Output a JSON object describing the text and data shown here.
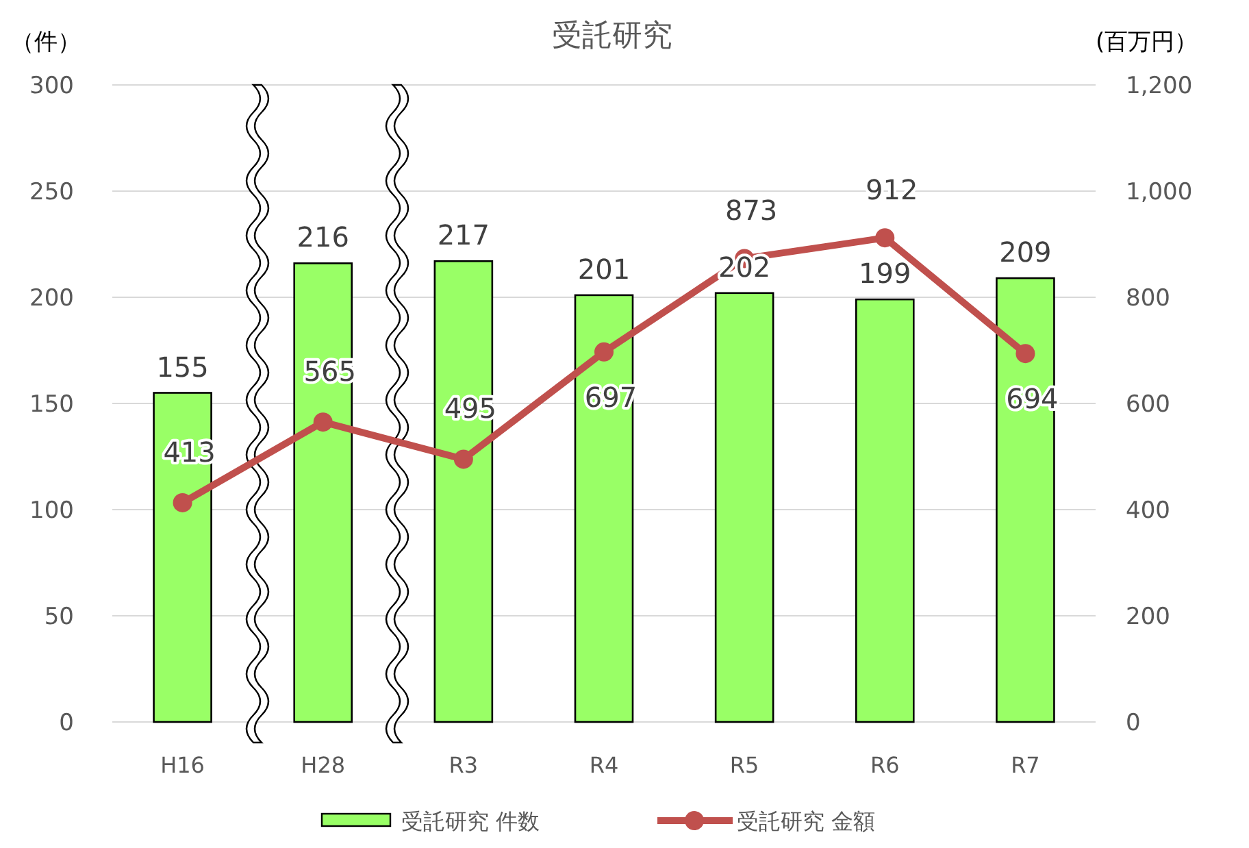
{
  "chart_data": {
    "type": "bar",
    "title": "受託研究",
    "ylabel": "（件）",
    "y2label": "(百万円）",
    "categories": [
      "H16",
      "H28",
      "R3",
      "R4",
      "R5",
      "R6",
      "R7"
    ],
    "series": [
      {
        "name": "受託研究 件数",
        "color": "#99ff66",
        "values": [
          155,
          216,
          217,
          201,
          202,
          199,
          209
        ]
      },
      {
        "name": "受託研究 金額",
        "type": "line",
        "axis": "y2",
        "color": "#c0504d",
        "marker": "circle",
        "values": [
          413,
          565,
          495,
          697,
          873,
          912,
          694
        ]
      }
    ],
    "ylim": [
      0,
      300
    ],
    "yticks": [
      0,
      50,
      100,
      150,
      200,
      250,
      300
    ],
    "y2lim": [
      0,
      1200
    ],
    "y2ticks": [
      0,
      200,
      400,
      600,
      800,
      {
        "value": 1000,
        "label": "1,000"
      },
      {
        "value": 1200,
        "label": "1,200"
      }
    ],
    "grid": "y",
    "legend": "bottom",
    "data_labels": true
  }
}
